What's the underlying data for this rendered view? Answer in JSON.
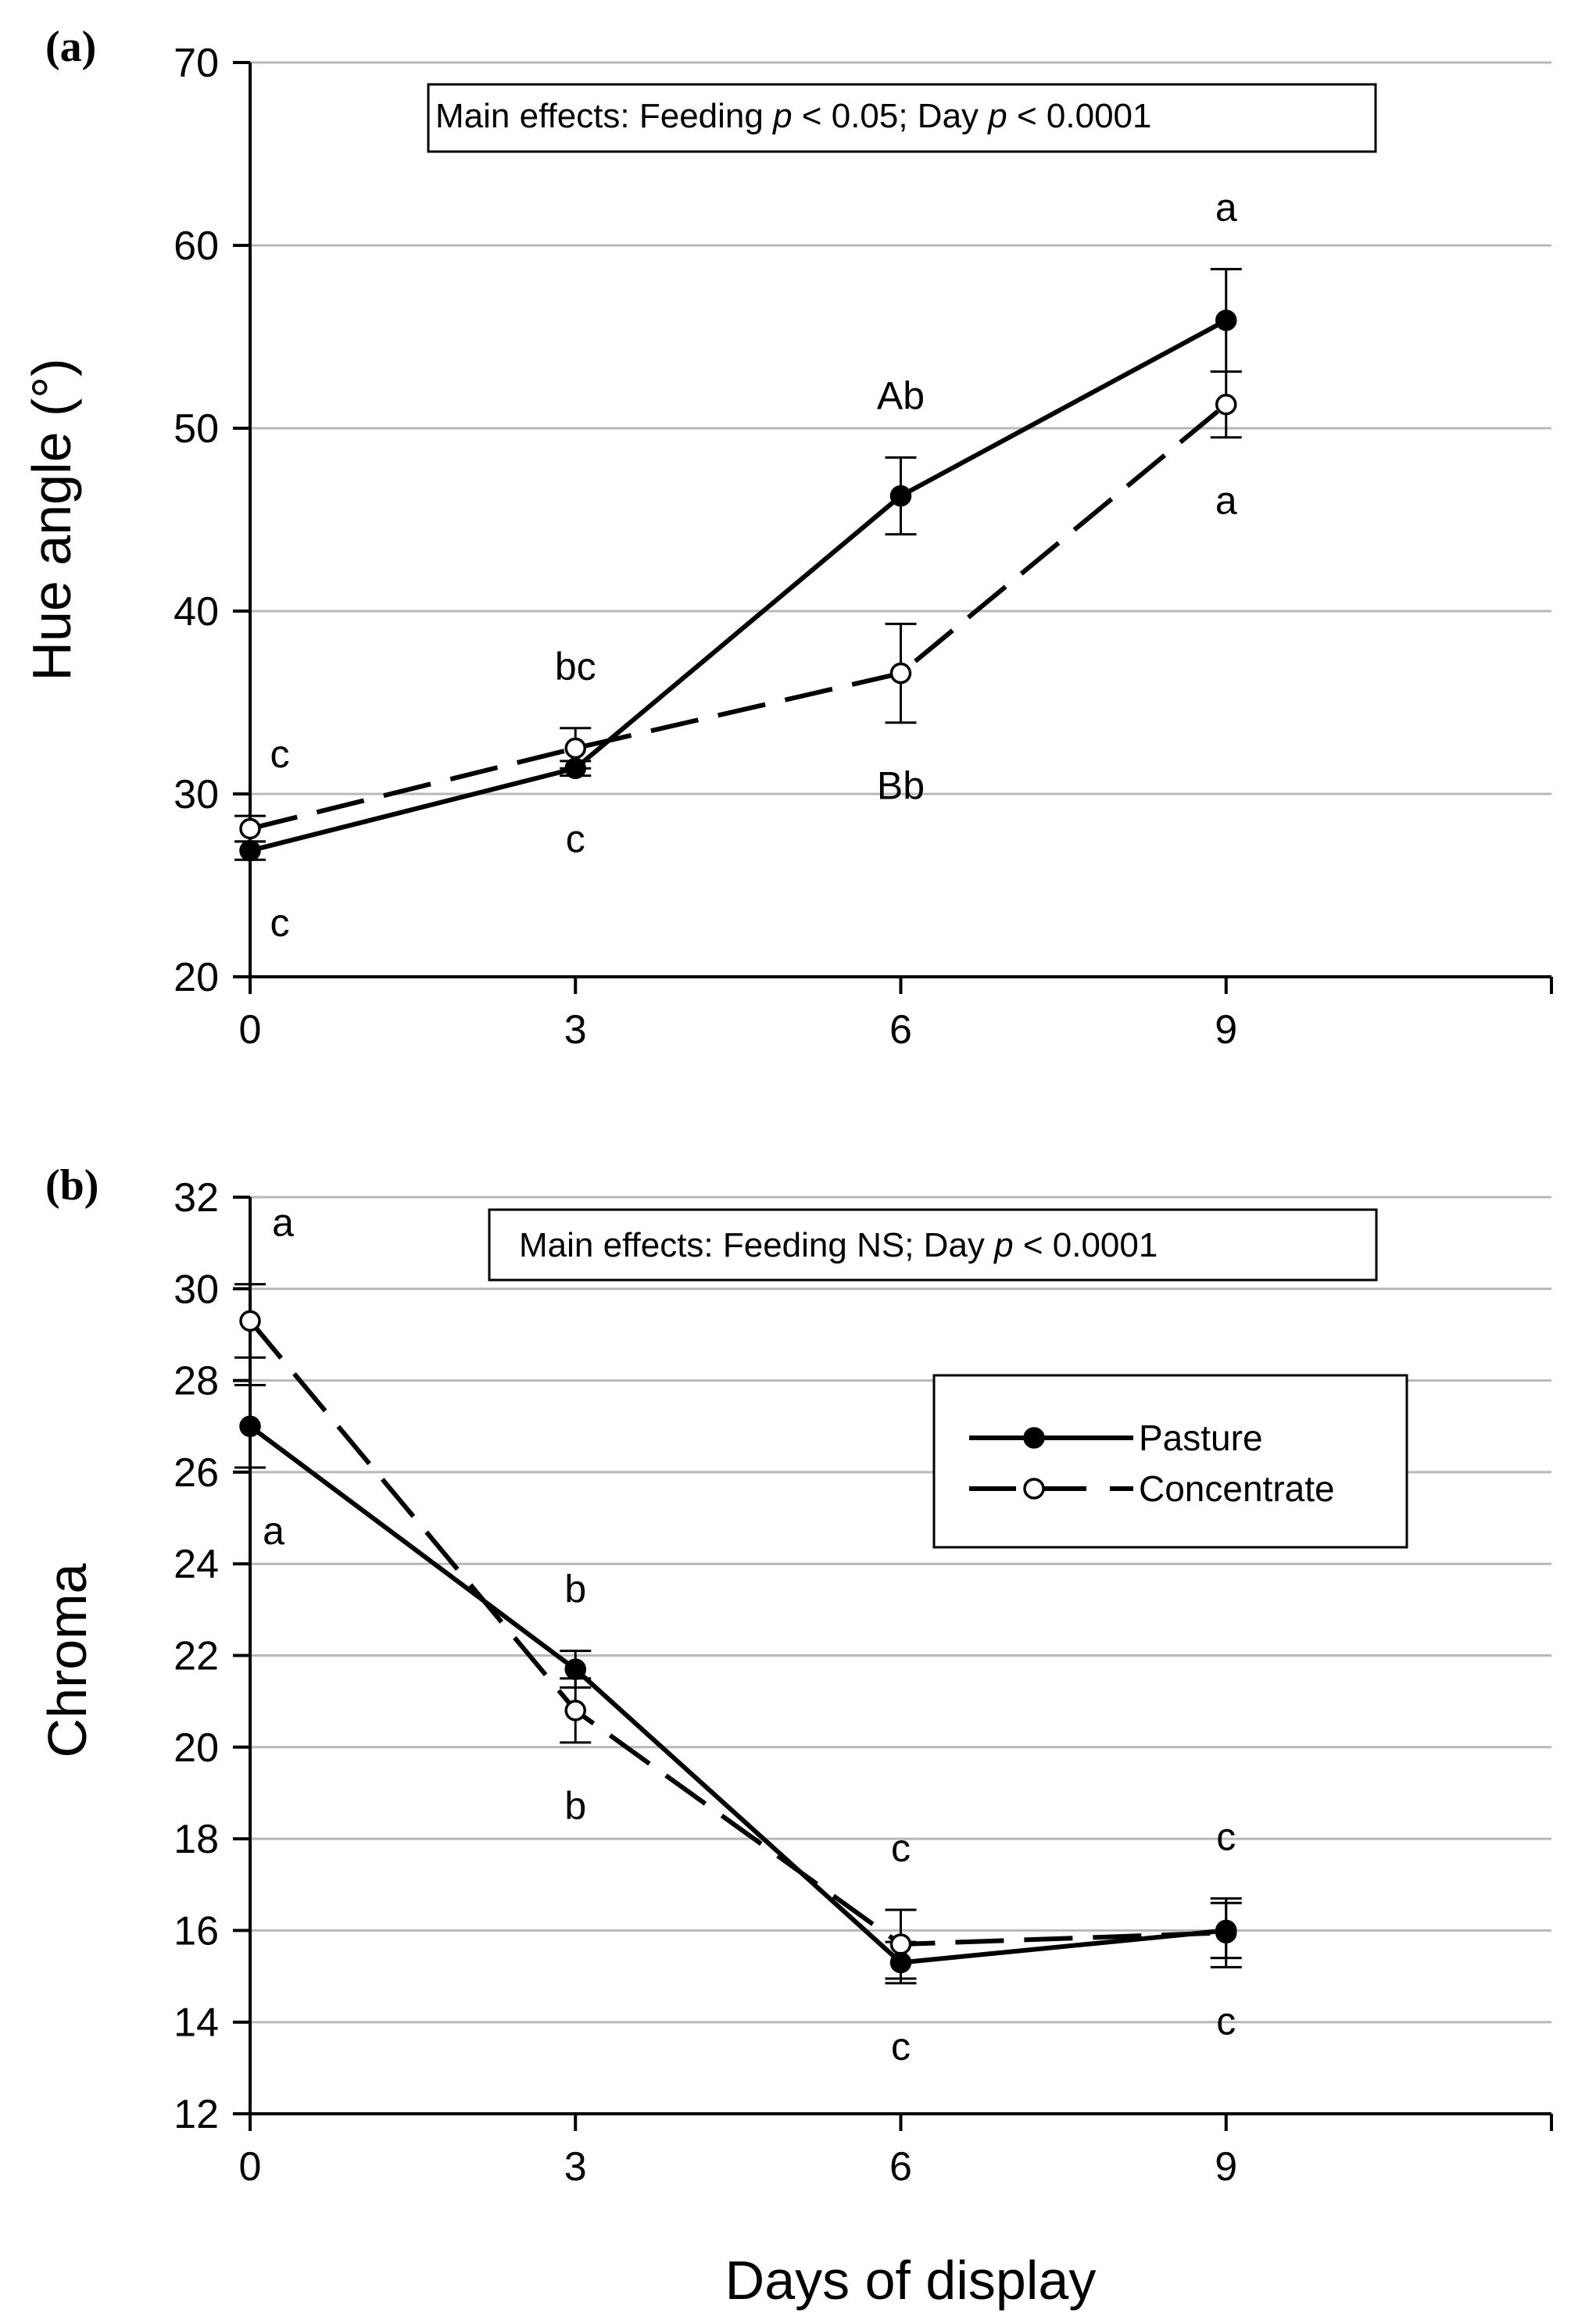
{
  "chart_data": [
    {
      "type": "line",
      "panel_label": "(a)",
      "ylabel": "Hue angle (°)",
      "xlabel": "Days of display",
      "x": [
        0,
        3,
        6,
        9
      ],
      "xticks": [
        "0",
        "3",
        "6",
        "9"
      ],
      "xlim": [
        0,
        12
      ],
      "ylim": [
        20,
        70
      ],
      "yticks": [
        "20",
        "30",
        "40",
        "50",
        "60",
        "70"
      ],
      "grid": true,
      "effects_text": {
        "prefix": "Main effects: Feeding ",
        "p1": "p",
        "mid": " < 0.05; Day ",
        "p2": "p",
        "suffix": " < 0.0001"
      },
      "series": [
        {
          "name": "Pasture",
          "marker": "filled",
          "dash": false,
          "values": [
            26.9,
            31.4,
            46.3,
            55.9
          ],
          "errors": [
            0.5,
            0.4,
            2.1,
            2.8
          ],
          "letters": [
            "c",
            "c",
            "Ab",
            "a"
          ],
          "letter_pos": [
            "below",
            "below",
            "above",
            "above"
          ]
        },
        {
          "name": "Concentrate",
          "marker": "open",
          "dash": true,
          "values": [
            28.1,
            32.5,
            36.6,
            51.3
          ],
          "errors": [
            0.7,
            1.1,
            2.7,
            1.8
          ],
          "letters": [
            "c",
            "bc",
            "Bb",
            "a"
          ],
          "letter_pos": [
            "above",
            "above",
            "below",
            "below"
          ]
        }
      ]
    },
    {
      "type": "line",
      "panel_label": "(b)",
      "ylabel": "Chroma",
      "xlabel": "Days of display",
      "x": [
        0,
        3,
        6,
        9
      ],
      "xticks": [
        "0",
        "3",
        "6",
        "9"
      ],
      "xlim": [
        0,
        12
      ],
      "ylim": [
        12,
        32
      ],
      "yticks": [
        "12",
        "14",
        "16",
        "18",
        "20",
        "22",
        "24",
        "26",
        "28",
        "30",
        "32"
      ],
      "grid": true,
      "effects_text": {
        "prefix": "Main effects: Feeding NS; Day ",
        "p1": "p",
        "mid": " < 0.0001",
        "p2": "",
        "suffix": ""
      },
      "legend": {
        "placement": "right",
        "entries": [
          "Pasture",
          "Concentrate"
        ]
      },
      "series": [
        {
          "name": "Pasture",
          "marker": "filled",
          "dash": false,
          "values": [
            27.0,
            21.7,
            15.3,
            16.0
          ],
          "errors": [
            0.9,
            0.4,
            0.45,
            0.6
          ],
          "letters": [
            "a",
            "b",
            "c",
            "c"
          ],
          "letter_pos": [
            "below",
            "above",
            "below",
            "below"
          ]
        },
        {
          "name": "Concentrate",
          "marker": "open",
          "dash": true,
          "values": [
            29.3,
            20.8,
            15.7,
            15.95
          ],
          "errors": [
            0.8,
            0.7,
            0.75,
            0.75
          ],
          "letters": [
            "a",
            "b",
            "c",
            "c"
          ],
          "letter_pos": [
            "above",
            "below",
            "above",
            "above"
          ]
        }
      ]
    }
  ]
}
